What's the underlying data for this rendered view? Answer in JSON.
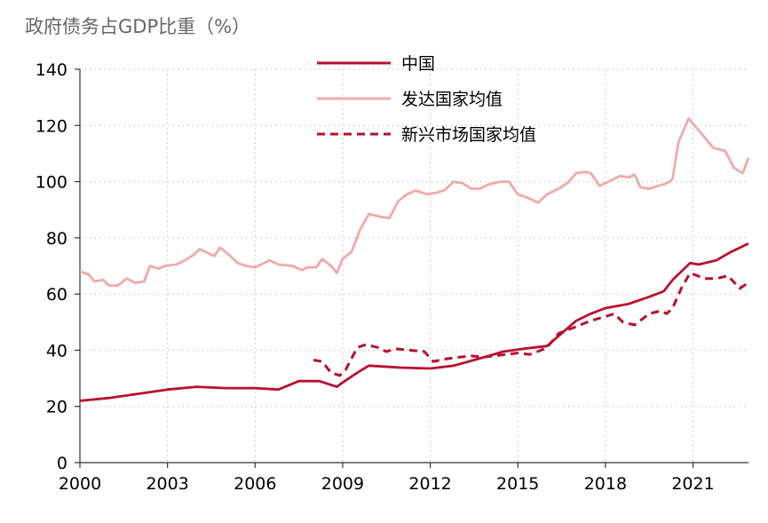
{
  "chart_data": {
    "type": "line",
    "title": "政府债务占GDP比重（%）",
    "xlabel": "",
    "ylabel": "",
    "xlim": [
      2000,
      2022.9
    ],
    "ylim": [
      0,
      140
    ],
    "x_ticks": [
      "2000",
      "2003",
      "2006",
      "2009",
      "2012",
      "2015",
      "2018",
      "2021"
    ],
    "y_ticks": [
      "0",
      "20",
      "40",
      "60",
      "80",
      "100",
      "120",
      "140"
    ],
    "grid": true,
    "legend_position": "top-center",
    "series": [
      {
        "name": "中国",
        "color": "#b8102e",
        "style": "solid",
        "x": [
          2000,
          2001,
          2002,
          2003,
          2004,
          2005,
          2006,
          2006.8,
          2007.5,
          2008.2,
          2008.8,
          2009,
          2009.5,
          2009.9,
          2011,
          2012,
          2012.8,
          2013.5,
          2014,
          2014.5,
          2015.2,
          2016,
          2016.5,
          2017,
          2017.5,
          2018,
          2018.8,
          2019.5,
          2020,
          2020.3,
          2020.9,
          2021.2,
          2021.8,
          2022.3,
          2022.9
        ],
        "y": [
          22,
          23,
          24.5,
          26,
          27,
          26.5,
          26.5,
          26,
          29,
          29,
          27,
          28.5,
          32,
          34.5,
          33.8,
          33.5,
          34.5,
          36.5,
          38,
          39.5,
          40.5,
          41.5,
          46,
          50.5,
          53,
          55,
          56.5,
          59,
          61,
          65,
          71,
          70.5,
          72,
          75,
          78
        ]
      },
      {
        "name": "发达国家均值",
        "color": "#f0aaa8",
        "style": "solid",
        "x": [
          2000,
          2000.3,
          2000.5,
          2000.8,
          2001,
          2001.3,
          2001.6,
          2001.9,
          2002.2,
          2002.4,
          2002.7,
          2002.9,
          2003.3,
          2003.6,
          2003.9,
          2004.1,
          2004.4,
          2004.6,
          2004.8,
          2005.1,
          2005.4,
          2005.7,
          2006,
          2006.3,
          2006.5,
          2006.8,
          2007.3,
          2007.6,
          2007.8,
          2008.1,
          2008.3,
          2008.6,
          2008.8,
          2009,
          2009.3,
          2009.6,
          2009.9,
          2010.3,
          2010.6,
          2010.9,
          2011.2,
          2011.5,
          2011.9,
          2012.2,
          2012.5,
          2012.8,
          2013.1,
          2013.4,
          2013.7,
          2014,
          2014.4,
          2014.7,
          2015,
          2015.4,
          2015.7,
          2016,
          2016.4,
          2016.7,
          2017,
          2017.3,
          2017.5,
          2017.8,
          2018.1,
          2018.5,
          2018.8,
          2019,
          2019.2,
          2019.5,
          2019.8,
          2020,
          2020.2,
          2020.3,
          2020.5,
          2020.85,
          2021.3,
          2021.7,
          2022.1,
          2022.4,
          2022.7,
          2022.9
        ],
        "y": [
          68,
          67,
          64.5,
          65,
          63,
          63,
          65.5,
          64,
          64.5,
          70,
          69,
          70,
          70.5,
          72,
          74,
          76,
          74.5,
          73.5,
          76.5,
          74,
          71,
          70,
          69.5,
          71,
          72,
          70.5,
          70,
          68.5,
          69.5,
          69.5,
          72.5,
          70,
          67.5,
          72.5,
          75,
          83,
          88.5,
          87.5,
          87,
          93,
          95.5,
          96.8,
          95.5,
          96,
          97,
          100,
          99.5,
          97.5,
          97.5,
          99,
          100,
          100,
          95.5,
          94,
          92.5,
          95.5,
          97.5,
          99.5,
          103,
          103.5,
          103,
          98.5,
          100,
          102,
          101.5,
          102.5,
          98,
          97.5,
          98.5,
          99,
          100,
          101,
          114,
          122.5,
          117,
          112,
          111,
          105,
          103,
          108.5
        ]
      },
      {
        "name": "新兴市场国家均值",
        "color": "#b8102e",
        "style": "dashed",
        "x": [
          2008,
          2008.3,
          2008.6,
          2008.9,
          2009.1,
          2009.5,
          2009.8,
          2010.2,
          2010.5,
          2010.8,
          2011.3,
          2011.8,
          2012.1,
          2012.6,
          2013,
          2013.4,
          2013.8,
          2014.2,
          2014.6,
          2015,
          2015.4,
          2015.8,
          2016,
          2016.4,
          2016.9,
          2017.5,
          2018,
          2018.3,
          2018.6,
          2019,
          2019.5,
          2019.9,
          2020.1,
          2020.3,
          2020.6,
          2020.9,
          2021.4,
          2021.8,
          2022.2,
          2022.6,
          2022.9
        ],
        "y": [
          36.5,
          36,
          32,
          31,
          33,
          41,
          42,
          41,
          39.5,
          40.5,
          40,
          39.5,
          36,
          37,
          37.5,
          38,
          37.5,
          38,
          38.5,
          39,
          38.5,
          40,
          41,
          46,
          48,
          50.5,
          52,
          53,
          50,
          49,
          53,
          54,
          53,
          55,
          62,
          67.5,
          65.5,
          65.5,
          66.5,
          62,
          64
        ]
      }
    ]
  }
}
